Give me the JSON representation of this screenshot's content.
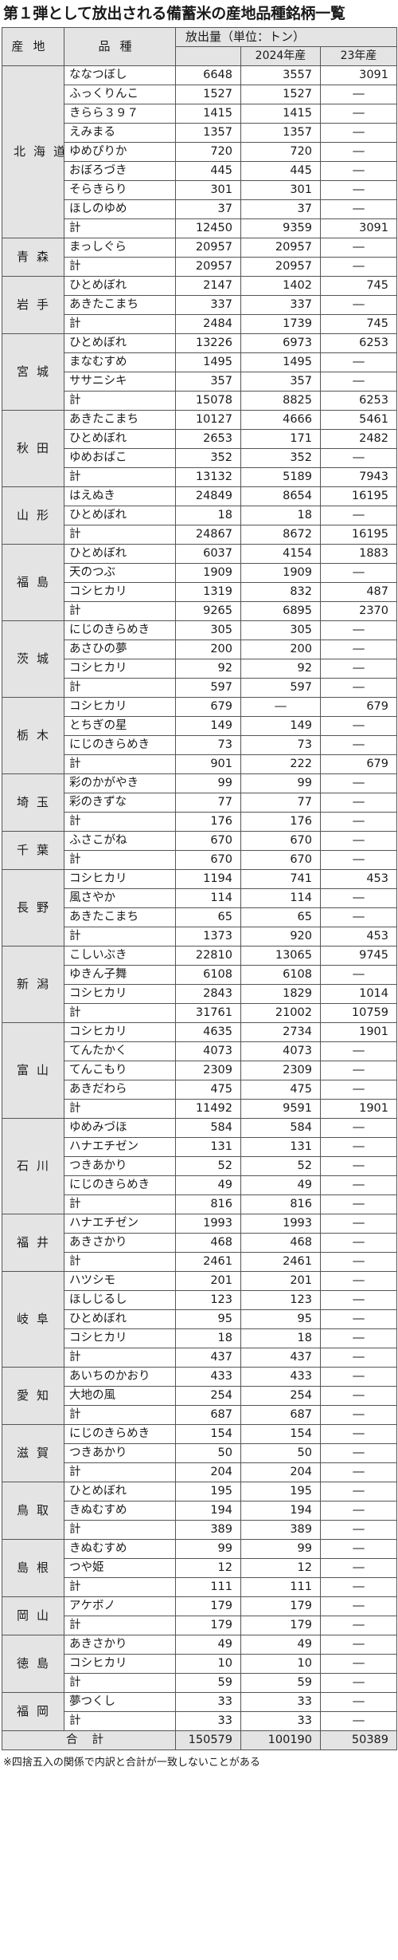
{
  "title": "第１弾として放出される備蓄米の産地品種銘柄一覧",
  "headers": {
    "region": "産地",
    "variety": "品種",
    "release_volume": "放出量（単位：トン）",
    "year_2024": "2024年産",
    "year_2023": "23年産"
  },
  "dash": "―",
  "total_label": "計",
  "regions": [
    {
      "name": "北海道",
      "rows": [
        {
          "variety": "ななつぼし",
          "total": "6648",
          "y2024": "3557",
          "y2023": "3091"
        },
        {
          "variety": "ふっくりんこ",
          "total": "1527",
          "y2024": "1527",
          "y2023": "―"
        },
        {
          "variety": "きらら３９７",
          "total": "1415",
          "y2024": "1415",
          "y2023": "―"
        },
        {
          "variety": "えみまる",
          "total": "1357",
          "y2024": "1357",
          "y2023": "―"
        },
        {
          "variety": "ゆめぴりか",
          "total": "720",
          "y2024": "720",
          "y2023": "―"
        },
        {
          "variety": "おぼろづき",
          "total": "445",
          "y2024": "445",
          "y2023": "―"
        },
        {
          "variety": "そらきらり",
          "total": "301",
          "y2024": "301",
          "y2023": "―"
        },
        {
          "variety": "ほしのゆめ",
          "total": "37",
          "y2024": "37",
          "y2023": "―"
        },
        {
          "variety": "計",
          "total": "12450",
          "y2024": "9359",
          "y2023": "3091"
        }
      ]
    },
    {
      "name": "青森",
      "rows": [
        {
          "variety": "まっしぐら",
          "total": "20957",
          "y2024": "20957",
          "y2023": "―"
        },
        {
          "variety": "計",
          "total": "20957",
          "y2024": "20957",
          "y2023": "―"
        }
      ]
    },
    {
      "name": "岩手",
      "rows": [
        {
          "variety": "ひとめぼれ",
          "total": "2147",
          "y2024": "1402",
          "y2023": "745"
        },
        {
          "variety": "あきたこまち",
          "total": "337",
          "y2024": "337",
          "y2023": "―"
        },
        {
          "variety": "計",
          "total": "2484",
          "y2024": "1739",
          "y2023": "745"
        }
      ]
    },
    {
      "name": "宮城",
      "rows": [
        {
          "variety": "ひとめぼれ",
          "total": "13226",
          "y2024": "6973",
          "y2023": "6253"
        },
        {
          "variety": "まなむすめ",
          "total": "1495",
          "y2024": "1495",
          "y2023": "―"
        },
        {
          "variety": "ササニシキ",
          "total": "357",
          "y2024": "357",
          "y2023": "―"
        },
        {
          "variety": "計",
          "total": "15078",
          "y2024": "8825",
          "y2023": "6253"
        }
      ]
    },
    {
      "name": "秋田",
      "rows": [
        {
          "variety": "あきたこまち",
          "total": "10127",
          "y2024": "4666",
          "y2023": "5461"
        },
        {
          "variety": "ひとめぼれ",
          "total": "2653",
          "y2024": "171",
          "y2023": "2482"
        },
        {
          "variety": "ゆめおばこ",
          "total": "352",
          "y2024": "352",
          "y2023": "―"
        },
        {
          "variety": "計",
          "total": "13132",
          "y2024": "5189",
          "y2023": "7943"
        }
      ]
    },
    {
      "name": "山形",
      "rows": [
        {
          "variety": "はえぬき",
          "total": "24849",
          "y2024": "8654",
          "y2023": "16195"
        },
        {
          "variety": "ひとめぼれ",
          "total": "18",
          "y2024": "18",
          "y2023": "―"
        },
        {
          "variety": "計",
          "total": "24867",
          "y2024": "8672",
          "y2023": "16195"
        }
      ]
    },
    {
      "name": "福島",
      "rows": [
        {
          "variety": "ひとめぼれ",
          "total": "6037",
          "y2024": "4154",
          "y2023": "1883"
        },
        {
          "variety": "天のつぶ",
          "total": "1909",
          "y2024": "1909",
          "y2023": "―"
        },
        {
          "variety": "コシヒカリ",
          "total": "1319",
          "y2024": "832",
          "y2023": "487"
        },
        {
          "variety": "計",
          "total": "9265",
          "y2024": "6895",
          "y2023": "2370"
        }
      ]
    },
    {
      "name": "茨城",
      "rows": [
        {
          "variety": "にじのきらめき",
          "total": "305",
          "y2024": "305",
          "y2023": "―"
        },
        {
          "variety": "あさひの夢",
          "total": "200",
          "y2024": "200",
          "y2023": "―"
        },
        {
          "variety": "コシヒカリ",
          "total": "92",
          "y2024": "92",
          "y2023": "―"
        },
        {
          "variety": "計",
          "total": "597",
          "y2024": "597",
          "y2023": "―"
        }
      ]
    },
    {
      "name": "栃木",
      "rows": [
        {
          "variety": "コシヒカリ",
          "total": "679",
          "y2024": "―",
          "y2023": "679"
        },
        {
          "variety": "とちぎの星",
          "total": "149",
          "y2024": "149",
          "y2023": "―"
        },
        {
          "variety": "にじのきらめき",
          "total": "73",
          "y2024": "73",
          "y2023": "―"
        },
        {
          "variety": "計",
          "total": "901",
          "y2024": "222",
          "y2023": "679"
        }
      ]
    },
    {
      "name": "埼玉",
      "rows": [
        {
          "variety": "彩のかがやき",
          "total": "99",
          "y2024": "99",
          "y2023": "―"
        },
        {
          "variety": "彩のきずな",
          "total": "77",
          "y2024": "77",
          "y2023": "―"
        },
        {
          "variety": "計",
          "total": "176",
          "y2024": "176",
          "y2023": "―"
        }
      ]
    },
    {
      "name": "千葉",
      "rows": [
        {
          "variety": "ふさこがね",
          "total": "670",
          "y2024": "670",
          "y2023": "―"
        },
        {
          "variety": "計",
          "total": "670",
          "y2024": "670",
          "y2023": "―"
        }
      ]
    },
    {
      "name": "長野",
      "rows": [
        {
          "variety": "コシヒカリ",
          "total": "1194",
          "y2024": "741",
          "y2023": "453"
        },
        {
          "variety": "風さやか",
          "total": "114",
          "y2024": "114",
          "y2023": "―"
        },
        {
          "variety": "あきたこまち",
          "total": "65",
          "y2024": "65",
          "y2023": "―"
        },
        {
          "variety": "計",
          "total": "1373",
          "y2024": "920",
          "y2023": "453"
        }
      ]
    },
    {
      "name": "新潟",
      "rows": [
        {
          "variety": "こしいぶき",
          "total": "22810",
          "y2024": "13065",
          "y2023": "9745"
        },
        {
          "variety": "ゆきん子舞",
          "total": "6108",
          "y2024": "6108",
          "y2023": "―"
        },
        {
          "variety": "コシヒカリ",
          "total": "2843",
          "y2024": "1829",
          "y2023": "1014"
        },
        {
          "variety": "計",
          "total": "31761",
          "y2024": "21002",
          "y2023": "10759"
        }
      ]
    },
    {
      "name": "富山",
      "rows": [
        {
          "variety": "コシヒカリ",
          "total": "4635",
          "y2024": "2734",
          "y2023": "1901"
        },
        {
          "variety": "てんたかく",
          "total": "4073",
          "y2024": "4073",
          "y2023": "―"
        },
        {
          "variety": "てんこもり",
          "total": "2309",
          "y2024": "2309",
          "y2023": "―"
        },
        {
          "variety": "あきだわら",
          "total": "475",
          "y2024": "475",
          "y2023": "―"
        },
        {
          "variety": "計",
          "total": "11492",
          "y2024": "9591",
          "y2023": "1901"
        }
      ]
    },
    {
      "name": "石川",
      "rows": [
        {
          "variety": "ゆめみづほ",
          "total": "584",
          "y2024": "584",
          "y2023": "―"
        },
        {
          "variety": "ハナエチゼン",
          "total": "131",
          "y2024": "131",
          "y2023": "―"
        },
        {
          "variety": "つきあかり",
          "total": "52",
          "y2024": "52",
          "y2023": "―"
        },
        {
          "variety": "にじのきらめき",
          "total": "49",
          "y2024": "49",
          "y2023": "―"
        },
        {
          "variety": "計",
          "total": "816",
          "y2024": "816",
          "y2023": "―"
        }
      ]
    },
    {
      "name": "福井",
      "rows": [
        {
          "variety": "ハナエチゼン",
          "total": "1993",
          "y2024": "1993",
          "y2023": "―"
        },
        {
          "variety": "あきさかり",
          "total": "468",
          "y2024": "468",
          "y2023": "―"
        },
        {
          "variety": "計",
          "total": "2461",
          "y2024": "2461",
          "y2023": "―"
        }
      ]
    },
    {
      "name": "岐阜",
      "rows": [
        {
          "variety": "ハツシモ",
          "total": "201",
          "y2024": "201",
          "y2023": "―"
        },
        {
          "variety": "ほしじるし",
          "total": "123",
          "y2024": "123",
          "y2023": "―"
        },
        {
          "variety": "ひとめぼれ",
          "total": "95",
          "y2024": "95",
          "y2023": "―"
        },
        {
          "variety": "コシヒカリ",
          "total": "18",
          "y2024": "18",
          "y2023": "―"
        },
        {
          "variety": "計",
          "total": "437",
          "y2024": "437",
          "y2023": "―"
        }
      ]
    },
    {
      "name": "愛知",
      "rows": [
        {
          "variety": "あいちのかおり",
          "total": "433",
          "y2024": "433",
          "y2023": "―"
        },
        {
          "variety": "大地の風",
          "total": "254",
          "y2024": "254",
          "y2023": "―"
        },
        {
          "variety": "計",
          "total": "687",
          "y2024": "687",
          "y2023": "―"
        }
      ]
    },
    {
      "name": "滋賀",
      "rows": [
        {
          "variety": "にじのきらめき",
          "total": "154",
          "y2024": "154",
          "y2023": "―"
        },
        {
          "variety": "つきあかり",
          "total": "50",
          "y2024": "50",
          "y2023": "―"
        },
        {
          "variety": "計",
          "total": "204",
          "y2024": "204",
          "y2023": "―"
        }
      ]
    },
    {
      "name": "鳥取",
      "rows": [
        {
          "variety": "ひとめぼれ",
          "total": "195",
          "y2024": "195",
          "y2023": "―"
        },
        {
          "variety": "きぬむすめ",
          "total": "194",
          "y2024": "194",
          "y2023": "―"
        },
        {
          "variety": "計",
          "total": "389",
          "y2024": "389",
          "y2023": "―"
        }
      ]
    },
    {
      "name": "島根",
      "rows": [
        {
          "variety": "きぬむすめ",
          "total": "99",
          "y2024": "99",
          "y2023": "―"
        },
        {
          "variety": "つや姫",
          "total": "12",
          "y2024": "12",
          "y2023": "―"
        },
        {
          "variety": "計",
          "total": "111",
          "y2024": "111",
          "y2023": "―"
        }
      ]
    },
    {
      "name": "岡山",
      "rows": [
        {
          "variety": "アケボノ",
          "total": "179",
          "y2024": "179",
          "y2023": "―"
        },
        {
          "variety": "計",
          "total": "179",
          "y2024": "179",
          "y2023": "―"
        }
      ]
    },
    {
      "name": "徳島",
      "rows": [
        {
          "variety": "あきさかり",
          "total": "49",
          "y2024": "49",
          "y2023": "―"
        },
        {
          "variety": "コシヒカリ",
          "total": "10",
          "y2024": "10",
          "y2023": "―"
        },
        {
          "variety": "計",
          "total": "59",
          "y2024": "59",
          "y2023": "―"
        }
      ]
    },
    {
      "name": "福岡",
      "rows": [
        {
          "variety": "夢つくし",
          "total": "33",
          "y2024": "33",
          "y2023": "―"
        },
        {
          "variety": "計",
          "total": "33",
          "y2024": "33",
          "y2023": "―"
        }
      ]
    }
  ],
  "grand_total": {
    "label": "合計",
    "total": "150579",
    "y2024": "100190",
    "y2023": "50389"
  },
  "note": "※四捨五入の関係で内訳と合計が一致しないことがある"
}
